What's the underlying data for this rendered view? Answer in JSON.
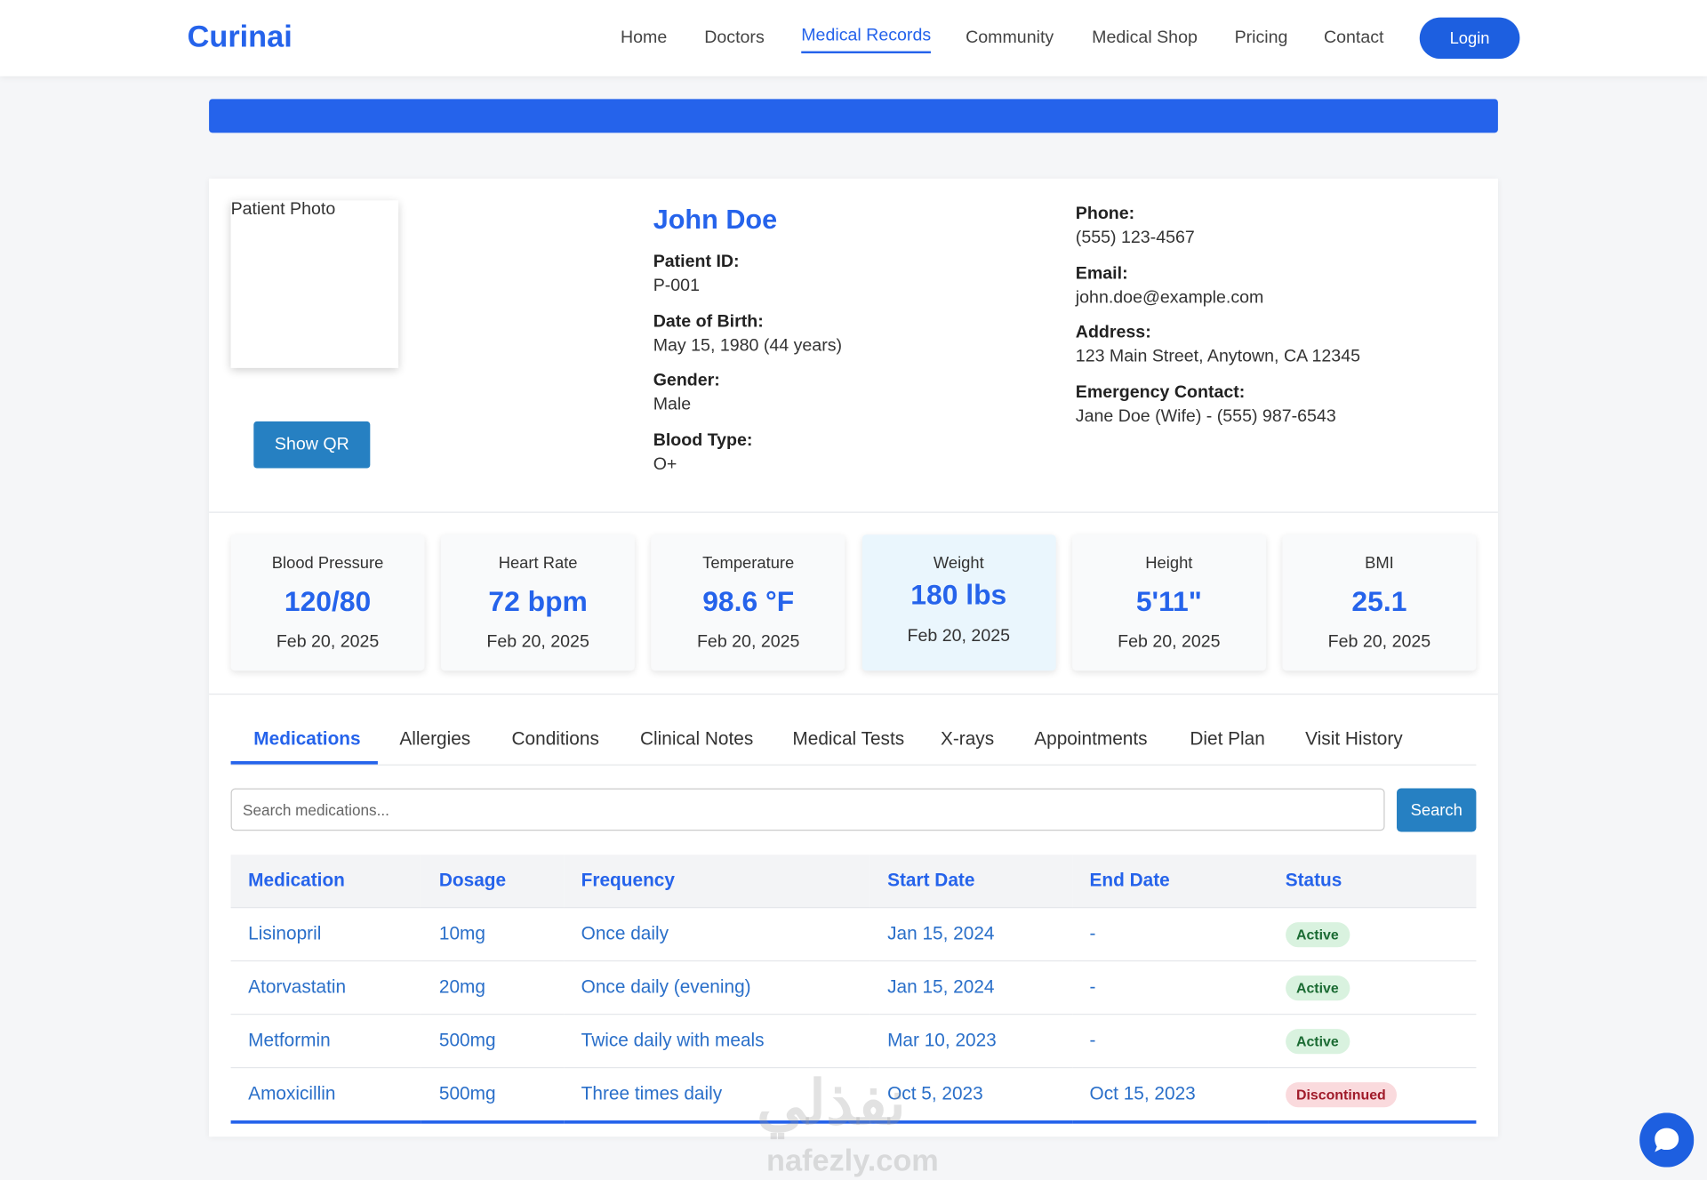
{
  "nav": {
    "logo": "Curinai",
    "links": [
      "Home",
      "Doctors",
      "Medical Records",
      "Community",
      "Medical Shop",
      "Pricing",
      "Contact"
    ],
    "login": "Login"
  },
  "patient": {
    "photo_alt": "Patient Photo",
    "show_qr": "Show QR",
    "name": "John Doe",
    "fields": [
      {
        "label": "Patient ID:",
        "value": "P-001"
      },
      {
        "label": "Date of Birth:",
        "value": "May 15, 1980 (44 years)"
      },
      {
        "label": "Gender:",
        "value": "Male"
      },
      {
        "label": "Blood Type:",
        "value": "O+"
      }
    ],
    "contact": [
      {
        "label": "Phone:",
        "value": "(555) 123-4567"
      },
      {
        "label": "Email:",
        "value": "john.doe@example.com"
      },
      {
        "label": "Address:",
        "value": "123 Main Street, Anytown, CA 12345"
      },
      {
        "label": "Emergency Contact:",
        "value": "Jane Doe (Wife) - (555) 987-6543"
      }
    ]
  },
  "vitals": [
    {
      "label": "Blood Pressure",
      "value": "120/80",
      "date": "Feb 20, 2025"
    },
    {
      "label": "Heart Rate",
      "value": "72 bpm",
      "date": "Feb 20, 2025"
    },
    {
      "label": "Temperature",
      "value": "98.6 °F",
      "date": "Feb 20, 2025"
    },
    {
      "label": "Weight",
      "value": "180 lbs",
      "date": "Feb 20, 2025"
    },
    {
      "label": "Height",
      "value": "5'11\"",
      "date": "Feb 20, 2025"
    },
    {
      "label": "BMI",
      "value": "25.1",
      "date": "Feb 20, 2025"
    }
  ],
  "tabs": [
    "Medications",
    "Allergies",
    "Conditions",
    "Clinical Notes",
    "Medical Tests",
    "X-rays",
    "Appointments",
    "Diet Plan",
    "Visit History"
  ],
  "search": {
    "placeholder": "Search medications...",
    "button": "Search"
  },
  "table": {
    "headers": [
      "Medication",
      "Dosage",
      "Frequency",
      "Start Date",
      "End Date",
      "Status"
    ],
    "rows": [
      [
        "Lisinopril",
        "10mg",
        "Once daily",
        "Jan 15, 2024",
        "-",
        "Active"
      ],
      [
        "Atorvastatin",
        "20mg",
        "Once daily (evening)",
        "Jan 15, 2024",
        "-",
        "Active"
      ],
      [
        "Metformin",
        "500mg",
        "Twice daily with meals",
        "Mar 10, 2023",
        "-",
        "Active"
      ],
      [
        "Amoxicillin",
        "500mg",
        "Three times daily",
        "Oct 5, 2023",
        "Oct 15, 2023",
        "Discontinued"
      ]
    ]
  },
  "watermark": {
    "arabic": "نفذلي",
    "latin": "nafezly.com"
  }
}
